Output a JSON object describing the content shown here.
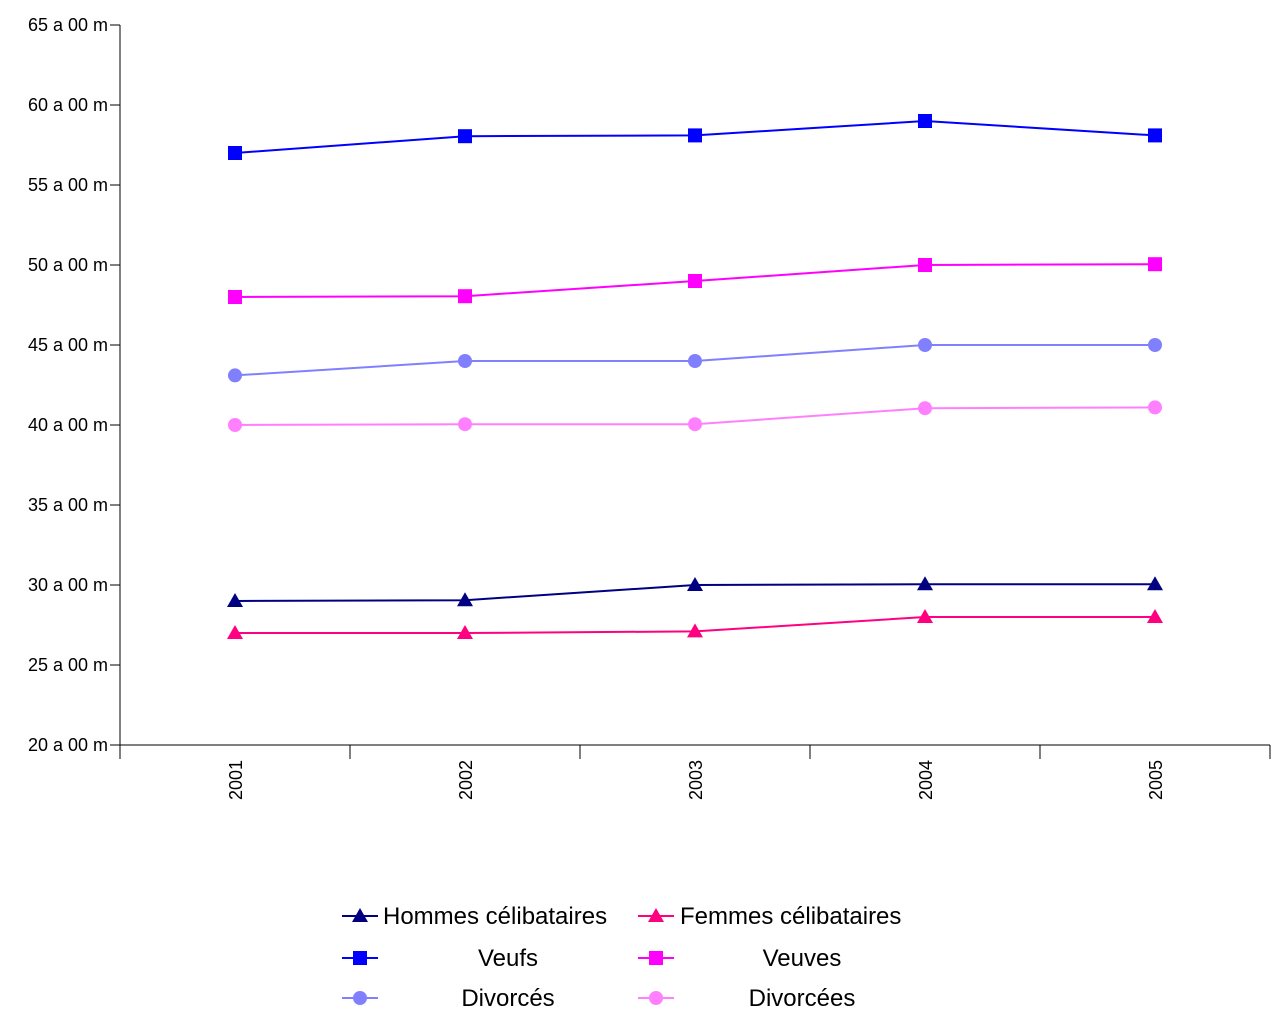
{
  "chart_data": {
    "type": "line",
    "title": "",
    "xlabel": "",
    "ylabel": "",
    "categories": [
      "2001",
      "2002",
      "2003",
      "2004",
      "2005"
    ],
    "ylim": [
      20,
      65
    ],
    "yticks": [
      {
        "value": 20,
        "label": "20 a 00 m"
      },
      {
        "value": 25,
        "label": "25 a 00 m"
      },
      {
        "value": 30,
        "label": "30 a 00 m"
      },
      {
        "value": 35,
        "label": "35 a 00 m"
      },
      {
        "value": 40,
        "label": "40 a 00 m"
      },
      {
        "value": 45,
        "label": "45 a 00 m"
      },
      {
        "value": 50,
        "label": "50 a 00 m"
      },
      {
        "value": 55,
        "label": "55 a 00 m"
      },
      {
        "value": 60,
        "label": "60 a 00 m"
      },
      {
        "value": 65,
        "label": "65 a 00 m"
      }
    ],
    "grid": false,
    "legend_position": "bottom",
    "series": [
      {
        "name": "Hommes célibataires",
        "color": "#000080",
        "marker": "triangle",
        "values": [
          29.0,
          29.05,
          30.0,
          30.05,
          30.05
        ]
      },
      {
        "name": "Femmes célibataires",
        "color": "#ff0080",
        "marker": "triangle",
        "values": [
          27.0,
          27.0,
          27.1,
          28.0,
          28.0
        ]
      },
      {
        "name": "Veufs",
        "color": "#0000ff",
        "marker": "square",
        "values": [
          57.0,
          58.05,
          58.1,
          59.0,
          58.1
        ]
      },
      {
        "name": "Veuves",
        "color": "#ff00ff",
        "marker": "square",
        "values": [
          48.0,
          48.05,
          49.0,
          50.0,
          50.05
        ]
      },
      {
        "name": "Divorcés",
        "color": "#8080ff",
        "marker": "circle",
        "values": [
          43.1,
          44.0,
          44.0,
          45.0,
          45.0
        ]
      },
      {
        "name": "Divorcées",
        "color": "#ff80ff",
        "marker": "circle",
        "values": [
          40.0,
          40.05,
          40.05,
          41.05,
          41.1
        ]
      }
    ]
  }
}
